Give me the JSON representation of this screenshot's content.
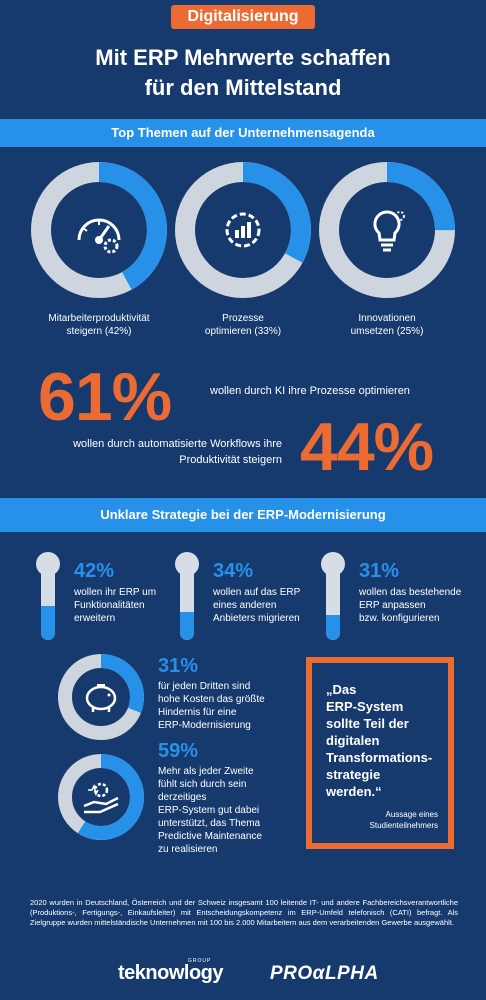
{
  "header": {
    "tag": "Digitalisierung",
    "title_line1": "Mit ERP Mehrwerte schaffen",
    "title_line2": "für den Mittelstand"
  },
  "section1": {
    "heading": "Top Themen auf der Unternehmensagenda",
    "rings": [
      {
        "label_line1": "Mitarbeiterproduktivität",
        "label_line2": "steigern (42%)",
        "value_pct": 42,
        "icon": "speedometer-gear-icon"
      },
      {
        "label_line1": "Prozesse",
        "label_line2": "optimieren (33%)",
        "value_pct": 33,
        "icon": "process-gear-icon"
      },
      {
        "label_line1": "Innovationen",
        "label_line2": "umsetzen (25%)",
        "value_pct": 25,
        "icon": "lightbulb-gear-icon"
      }
    ],
    "stat1": {
      "value": "61%",
      "text": "wollen durch KI ihre Prozesse optimieren"
    },
    "stat2": {
      "value": "44%",
      "text_line1": "wollen durch automatisierte Workflows ihre",
      "text_line2": "Produktivität steigern"
    }
  },
  "section2": {
    "heading": "Unklare Strategie bei der ERP-Modernisierung",
    "bars": [
      {
        "value": "42%",
        "fill_pct": 42,
        "line1": "wollen ihr ERP um",
        "line2": "Funktionalitäten",
        "line3": "erweitern"
      },
      {
        "value": "34%",
        "fill_pct": 34,
        "line1": "wollen auf das ERP",
        "line2": "eines anderen",
        "line3": "Anbieters migrieren"
      },
      {
        "value": "31%",
        "fill_pct": 31,
        "line1": "wollen das bestehende",
        "line2": "ERP anpassen",
        "line3": "bzw. konfigurieren"
      }
    ],
    "stat_costs": {
      "value": "31%",
      "fill_pct": 31,
      "icon": "piggy-bank-icon",
      "lines": [
        "für jeden Dritten sind",
        "hohe Kosten das größte",
        "Hindernis für eine",
        "ERP-Modernisierung"
      ]
    },
    "stat_maintenance": {
      "value": "59%",
      "fill_pct": 59,
      "icon": "hand-gear-icon",
      "lines": [
        "Mehr als jeder Zweite",
        "fühlt sich durch sein",
        "derzeitiges",
        "ERP-System gut dabei",
        "unterstützt, das Thema",
        "Predictive Maintenance",
        "zu realisieren"
      ]
    },
    "quote": {
      "lines": [
        "„Das",
        "ERP-System",
        "sollte Teil der",
        "digitalen",
        "Transformations-",
        "strategie",
        "werden.“"
      ],
      "source_line1": "Aussage eines",
      "source_line2": "Studienteilnehmers"
    }
  },
  "footnote": "2020 wurden in Deutschland, Österreich und der Schweiz insgesamt 100 leitende IT- und andere Fachbereichsverantwortliche (Produktions-, Fertigungs-, Einkaufsleiter) mit Entscheidungskompetenz im ERP-Umfeld telefonisch (CATI) befragt. Als Zielgruppe wurden mittelständische Unternehmen mit 100 bis 2.000 Mitarbeitern aus dem verarbeitenden Gewerbe ausgewählt.",
  "logos": {
    "teknowlogy": "teknowlogy",
    "teknowlogy_tm": "GROUP",
    "proalpha": "PROαLPHA"
  },
  "colors": {
    "background": "#173a6e",
    "accent_orange": "#ec6b32",
    "accent_blue": "#2790e8",
    "ring_grey": "#cfd5de"
  }
}
